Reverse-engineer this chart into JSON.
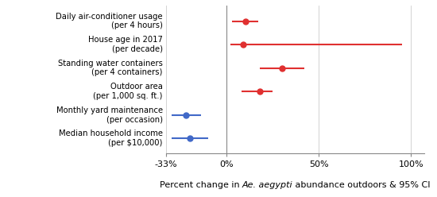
{
  "categories": [
    "Daily air-conditioner usage\n(per 4 hours)",
    "House age in 2017\n(per decade)",
    "Standing water containers\n(per 4 containers)",
    "Outdoor area\n(per 1,000 sq. ft.)",
    "Monthly yard maintenance\n(per occasion)",
    "Median household income\n(per $10,000)"
  ],
  "estimates": [
    10,
    9,
    30,
    18,
    -22,
    -20
  ],
  "ci_low": [
    3,
    2,
    18,
    8,
    -30,
    -30
  ],
  "ci_high": [
    17,
    95,
    42,
    25,
    -14,
    -10
  ],
  "colors": [
    "#e03030",
    "#e03030",
    "#e03030",
    "#e03030",
    "#4169c8",
    "#4169c8"
  ],
  "xlim": [
    -33,
    107
  ],
  "xticks": [
    -33,
    0,
    50,
    100
  ],
  "xticklabels": [
    "-33%",
    "0%",
    "50%",
    "100%"
  ],
  "vline_x": 0,
  "background_color": "#ffffff",
  "xlabel_plain1": "Percent change in ",
  "xlabel_italic": "Ae. aegypti",
  "xlabel_plain2": " abundance outdoors & 95% CI"
}
